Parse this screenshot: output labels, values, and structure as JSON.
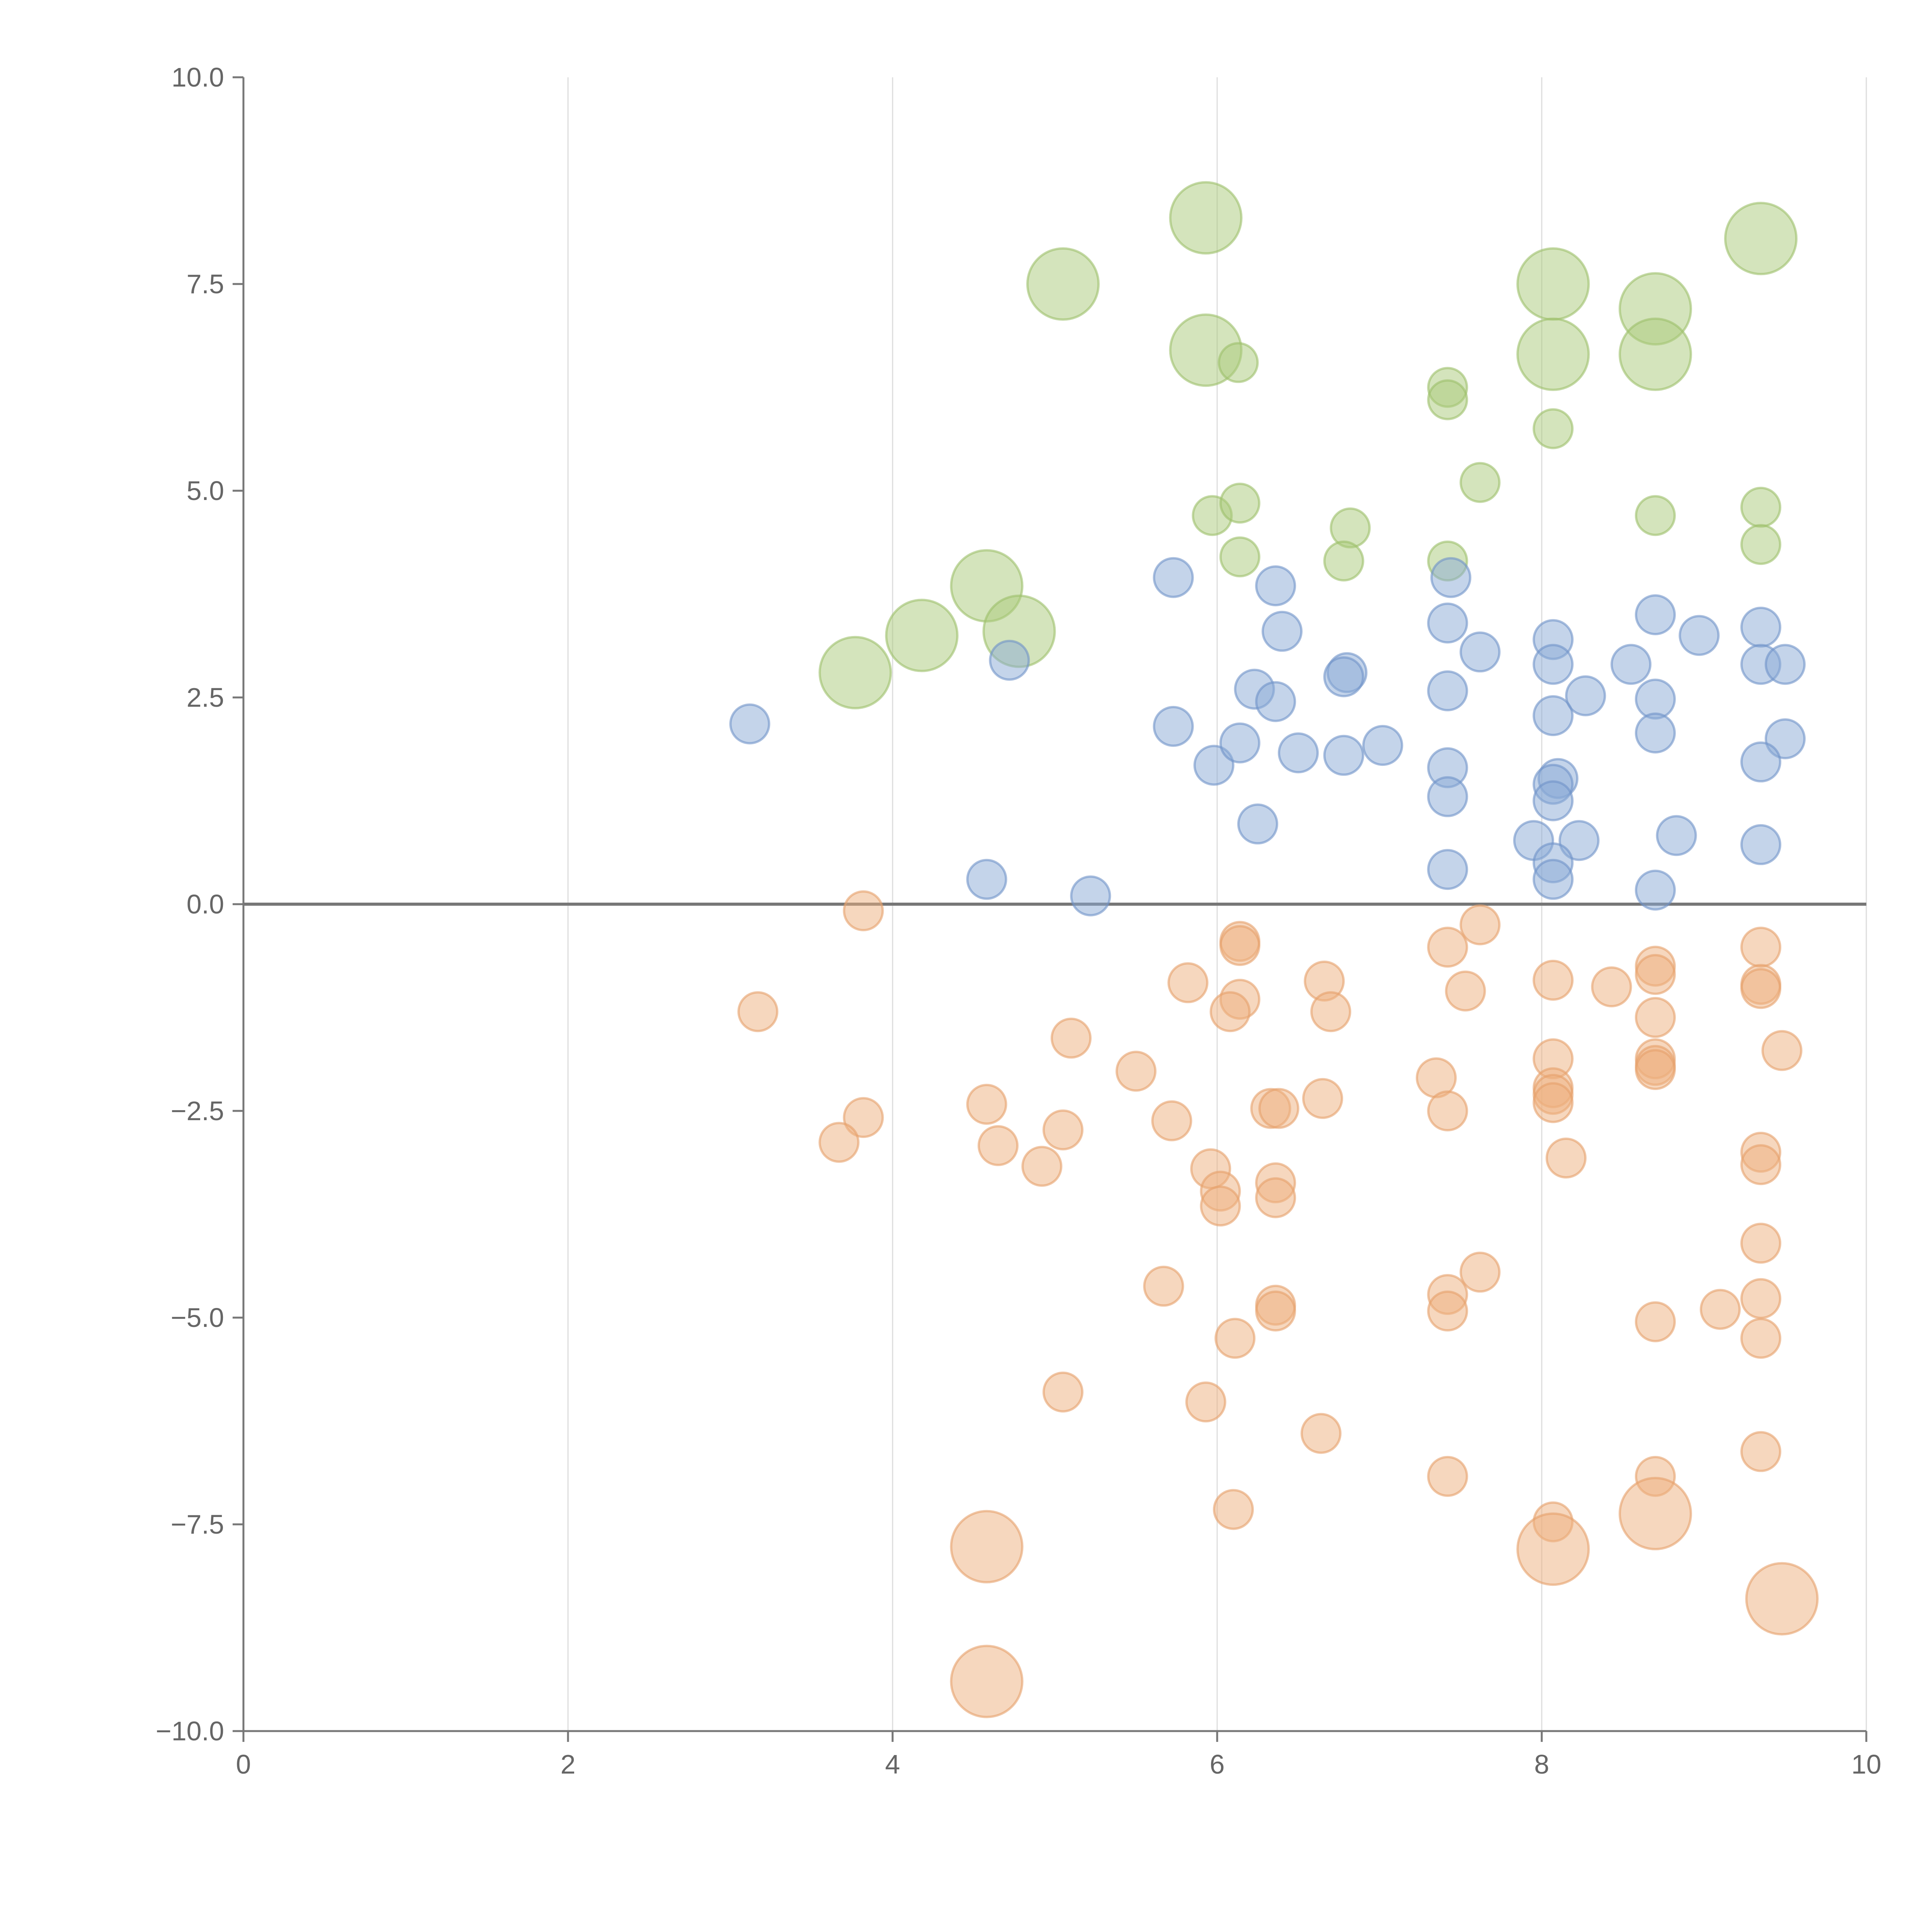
{
  "chart_data": {
    "type": "scatter",
    "title": "",
    "xlabel": "",
    "ylabel": "",
    "xlim": [
      0,
      10
    ],
    "ylim": [
      -10,
      10
    ],
    "x_ticks": [
      0,
      2,
      4,
      6,
      8,
      10
    ],
    "x_tick_labels": [
      "0",
      "2",
      "4",
      "6",
      "8",
      "10"
    ],
    "y_ticks": [
      -10,
      -7.5,
      -5,
      -2.5,
      0,
      2.5,
      5,
      7.5,
      10
    ],
    "y_tick_labels": [
      "−10.0",
      "−7.5",
      "−5.0",
      "−2.5",
      "0.0",
      "2.5",
      "5.0",
      "7.5",
      "10.0"
    ],
    "vertical_grid": true,
    "zero_line": true,
    "series": [
      {
        "name": "green",
        "color": "#a9c97a",
        "stroke": "#9cc06a",
        "points": [
          {
            "x": 5.93,
            "y": 8.3,
            "r": 2.5
          },
          {
            "x": 5.05,
            "y": 7.5,
            "r": 2.5
          },
          {
            "x": 5.93,
            "y": 6.7,
            "r": 2.5
          },
          {
            "x": 6.13,
            "y": 6.55,
            "r": 1
          },
          {
            "x": 8.07,
            "y": 7.5,
            "r": 2.5
          },
          {
            "x": 8.07,
            "y": 6.65,
            "r": 2.5
          },
          {
            "x": 8.7,
            "y": 7.2,
            "r": 2.5
          },
          {
            "x": 8.7,
            "y": 6.65,
            "r": 2.5
          },
          {
            "x": 9.35,
            "y": 8.05,
            "r": 2.5
          },
          {
            "x": 7.42,
            "y": 6.25,
            "r": 1
          },
          {
            "x": 7.42,
            "y": 6.1,
            "r": 1
          },
          {
            "x": 8.07,
            "y": 5.75,
            "r": 1
          },
          {
            "x": 7.62,
            "y": 5.1,
            "r": 1
          },
          {
            "x": 5.97,
            "y": 4.7,
            "r": 1
          },
          {
            "x": 6.14,
            "y": 4.85,
            "r": 1
          },
          {
            "x": 6.14,
            "y": 4.2,
            "r": 1
          },
          {
            "x": 6.82,
            "y": 4.55,
            "r": 1
          },
          {
            "x": 6.78,
            "y": 4.15,
            "r": 1
          },
          {
            "x": 7.42,
            "y": 4.15,
            "r": 1
          },
          {
            "x": 8.7,
            "y": 4.7,
            "r": 1
          },
          {
            "x": 9.35,
            "y": 4.8,
            "r": 1
          },
          {
            "x": 9.35,
            "y": 4.35,
            "r": 1
          },
          {
            "x": 4.58,
            "y": 3.85,
            "r": 2.5
          },
          {
            "x": 4.78,
            "y": 3.3,
            "r": 2.5
          },
          {
            "x": 4.18,
            "y": 3.25,
            "r": 2.5
          },
          {
            "x": 3.77,
            "y": 2.8,
            "r": 2.5
          }
        ]
      },
      {
        "name": "blue",
        "color": "#8aaad6",
        "stroke": "#6f92c8",
        "points": [
          {
            "x": 5.73,
            "y": 3.95,
            "r": 1
          },
          {
            "x": 6.36,
            "y": 3.85,
            "r": 1
          },
          {
            "x": 6.4,
            "y": 3.3,
            "r": 1
          },
          {
            "x": 7.44,
            "y": 3.95,
            "r": 1
          },
          {
            "x": 7.42,
            "y": 3.4,
            "r": 1
          },
          {
            "x": 7.62,
            "y": 3.05,
            "r": 1
          },
          {
            "x": 8.07,
            "y": 3.2,
            "r": 1
          },
          {
            "x": 8.07,
            "y": 2.9,
            "r": 1
          },
          {
            "x": 8.7,
            "y": 3.5,
            "r": 1
          },
          {
            "x": 8.55,
            "y": 2.9,
            "r": 1
          },
          {
            "x": 8.97,
            "y": 3.25,
            "r": 1
          },
          {
            "x": 9.35,
            "y": 3.35,
            "r": 1
          },
          {
            "x": 9.35,
            "y": 2.9,
            "r": 1
          },
          {
            "x": 9.5,
            "y": 2.9,
            "r": 1
          },
          {
            "x": 4.72,
            "y": 2.95,
            "r": 1
          },
          {
            "x": 3.12,
            "y": 2.18,
            "r": 1
          },
          {
            "x": 5.73,
            "y": 2.15,
            "r": 1
          },
          {
            "x": 6.23,
            "y": 2.6,
            "r": 1
          },
          {
            "x": 6.36,
            "y": 2.45,
            "r": 1
          },
          {
            "x": 6.8,
            "y": 2.8,
            "r": 1
          },
          {
            "x": 6.78,
            "y": 2.75,
            "r": 1
          },
          {
            "x": 7.42,
            "y": 2.58,
            "r": 1
          },
          {
            "x": 8.07,
            "y": 2.28,
            "r": 1
          },
          {
            "x": 8.27,
            "y": 2.52,
            "r": 1
          },
          {
            "x": 8.7,
            "y": 2.48,
            "r": 1
          },
          {
            "x": 8.7,
            "y": 2.07,
            "r": 1
          },
          {
            "x": 9.5,
            "y": 2.0,
            "r": 1
          },
          {
            "x": 9.35,
            "y": 1.72,
            "r": 1
          },
          {
            "x": 5.98,
            "y": 1.68,
            "r": 1
          },
          {
            "x": 6.14,
            "y": 1.95,
            "r": 1
          },
          {
            "x": 6.5,
            "y": 1.83,
            "r": 1
          },
          {
            "x": 6.78,
            "y": 1.8,
            "r": 1
          },
          {
            "x": 7.02,
            "y": 1.92,
            "r": 1
          },
          {
            "x": 7.42,
            "y": 1.65,
            "r": 1
          },
          {
            "x": 7.42,
            "y": 1.3,
            "r": 1
          },
          {
            "x": 8.1,
            "y": 1.52,
            "r": 1
          },
          {
            "x": 8.07,
            "y": 1.45,
            "r": 1
          },
          {
            "x": 8.07,
            "y": 1.25,
            "r": 1
          },
          {
            "x": 6.25,
            "y": 0.97,
            "r": 1
          },
          {
            "x": 7.95,
            "y": 0.77,
            "r": 1
          },
          {
            "x": 8.23,
            "y": 0.77,
            "r": 1
          },
          {
            "x": 8.07,
            "y": 0.5,
            "r": 1
          },
          {
            "x": 8.07,
            "y": 0.3,
            "r": 1
          },
          {
            "x": 8.83,
            "y": 0.83,
            "r": 1
          },
          {
            "x": 9.35,
            "y": 0.72,
            "r": 1
          },
          {
            "x": 7.42,
            "y": 0.42,
            "r": 1
          },
          {
            "x": 8.7,
            "y": 0.17,
            "r": 1
          },
          {
            "x": 4.58,
            "y": 0.3,
            "r": 1
          },
          {
            "x": 5.22,
            "y": 0.1,
            "r": 1
          }
        ]
      },
      {
        "name": "orange",
        "color": "#eeb07e",
        "stroke": "#e6a06a",
        "points": [
          {
            "x": 3.82,
            "y": -0.08,
            "r": 1
          },
          {
            "x": 3.17,
            "y": -1.3,
            "r": 1
          },
          {
            "x": 3.82,
            "y": -2.58,
            "r": 1
          },
          {
            "x": 3.67,
            "y": -2.88,
            "r": 1
          },
          {
            "x": 4.58,
            "y": -2.42,
            "r": 1
          },
          {
            "x": 4.65,
            "y": -2.92,
            "r": 1
          },
          {
            "x": 4.92,
            "y": -3.17,
            "r": 1
          },
          {
            "x": 5.05,
            "y": -2.73,
            "r": 1
          },
          {
            "x": 5.1,
            "y": -1.62,
            "r": 1
          },
          {
            "x": 5.5,
            "y": -2.02,
            "r": 1
          },
          {
            "x": 5.72,
            "y": -2.62,
            "r": 1
          },
          {
            "x": 5.82,
            "y": -0.95,
            "r": 1
          },
          {
            "x": 6.14,
            "y": -0.45,
            "r": 1
          },
          {
            "x": 6.14,
            "y": -0.5,
            "r": 1
          },
          {
            "x": 6.14,
            "y": -1.15,
            "r": 1
          },
          {
            "x": 6.08,
            "y": -1.3,
            "r": 1
          },
          {
            "x": 6.66,
            "y": -0.93,
            "r": 1
          },
          {
            "x": 6.7,
            "y": -1.3,
            "r": 1
          },
          {
            "x": 6.65,
            "y": -2.35,
            "r": 1
          },
          {
            "x": 6.33,
            "y": -2.47,
            "r": 1
          },
          {
            "x": 6.38,
            "y": -2.47,
            "r": 1
          },
          {
            "x": 5.96,
            "y": -3.2,
            "r": 1
          },
          {
            "x": 6.02,
            "y": -3.47,
            "r": 1
          },
          {
            "x": 6.02,
            "y": -3.65,
            "r": 1
          },
          {
            "x": 6.36,
            "y": -3.37,
            "r": 1
          },
          {
            "x": 6.36,
            "y": -3.55,
            "r": 1
          },
          {
            "x": 5.67,
            "y": -4.62,
            "r": 1
          },
          {
            "x": 6.36,
            "y": -4.85,
            "r": 1
          },
          {
            "x": 6.36,
            "y": -4.92,
            "r": 1
          },
          {
            "x": 6.11,
            "y": -5.25,
            "r": 1
          },
          {
            "x": 5.05,
            "y": -5.9,
            "r": 1
          },
          {
            "x": 5.93,
            "y": -6.02,
            "r": 1
          },
          {
            "x": 6.64,
            "y": -6.4,
            "r": 1
          },
          {
            "x": 6.1,
            "y": -7.32,
            "r": 1
          },
          {
            "x": 7.42,
            "y": -0.52,
            "r": 1
          },
          {
            "x": 7.62,
            "y": -0.25,
            "r": 1
          },
          {
            "x": 7.53,
            "y": -1.05,
            "r": 1
          },
          {
            "x": 7.35,
            "y": -2.1,
            "r": 1
          },
          {
            "x": 7.42,
            "y": -2.5,
            "r": 1
          },
          {
            "x": 7.62,
            "y": -4.45,
            "r": 1
          },
          {
            "x": 7.42,
            "y": -4.72,
            "r": 1
          },
          {
            "x": 7.42,
            "y": -4.92,
            "r": 1
          },
          {
            "x": 7.42,
            "y": -6.92,
            "r": 1
          },
          {
            "x": 8.07,
            "y": -0.92,
            "r": 1
          },
          {
            "x": 8.07,
            "y": -1.87,
            "r": 1
          },
          {
            "x": 8.07,
            "y": -2.22,
            "r": 1
          },
          {
            "x": 8.07,
            "y": -2.3,
            "r": 1
          },
          {
            "x": 8.07,
            "y": -2.4,
            "r": 1
          },
          {
            "x": 8.15,
            "y": -3.07,
            "r": 1
          },
          {
            "x": 8.43,
            "y": -1.0,
            "r": 1
          },
          {
            "x": 8.7,
            "y": -0.75,
            "r": 1
          },
          {
            "x": 8.7,
            "y": -0.85,
            "r": 1
          },
          {
            "x": 8.7,
            "y": -1.37,
            "r": 1
          },
          {
            "x": 8.7,
            "y": -1.87,
            "r": 1
          },
          {
            "x": 8.7,
            "y": -1.95,
            "r": 1
          },
          {
            "x": 8.7,
            "y": -2.0,
            "r": 1
          },
          {
            "x": 8.7,
            "y": -5.05,
            "r": 1
          },
          {
            "x": 8.7,
            "y": -6.92,
            "r": 1
          },
          {
            "x": 9.1,
            "y": -4.9,
            "r": 1
          },
          {
            "x": 9.35,
            "y": -0.52,
            "r": 1
          },
          {
            "x": 9.35,
            "y": -0.97,
            "r": 1
          },
          {
            "x": 9.35,
            "y": -1.02,
            "r": 1
          },
          {
            "x": 9.48,
            "y": -1.77,
            "r": 1
          },
          {
            "x": 9.35,
            "y": -3.0,
            "r": 1
          },
          {
            "x": 9.35,
            "y": -3.15,
            "r": 1
          },
          {
            "x": 9.35,
            "y": -4.1,
            "r": 1
          },
          {
            "x": 9.35,
            "y": -4.77,
            "r": 1
          },
          {
            "x": 9.35,
            "y": -5.25,
            "r": 1
          },
          {
            "x": 9.35,
            "y": -6.62,
            "r": 1
          },
          {
            "x": 8.07,
            "y": -7.47,
            "r": 1
          },
          {
            "x": 4.58,
            "y": -7.77,
            "r": 2.5
          },
          {
            "x": 4.58,
            "y": -9.4,
            "r": 2.5
          },
          {
            "x": 8.07,
            "y": -7.8,
            "r": 2.5
          },
          {
            "x": 8.7,
            "y": -7.37,
            "r": 2.5
          },
          {
            "x": 9.48,
            "y": -8.4,
            "r": 2.5
          }
        ]
      }
    ]
  }
}
